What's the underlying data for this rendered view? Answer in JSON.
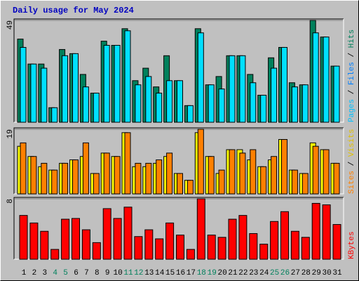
{
  "chart_data": [
    {
      "type": "bar",
      "title": "Daily usage for May 2024",
      "y_label_parts": [
        {
          "text": "Pages",
          "color": "#00c0ff"
        },
        {
          "text": " / ",
          "color": "#000000"
        },
        {
          "text": "Files",
          "color": "#0080ff"
        },
        {
          "text": " / ",
          "color": "#000000"
        },
        {
          "text": "Hits",
          "color": "#00805c"
        }
      ],
      "ylim": [
        0,
        49
      ],
      "yticks": [
        49
      ],
      "series": [
        {
          "name": "Hits",
          "color": "#00805c",
          "values": [
            40,
            28,
            28,
            7,
            35,
            33,
            23,
            14,
            39,
            37,
            45,
            20,
            26,
            17,
            32,
            20,
            8,
            45,
            18,
            22,
            32,
            32,
            23,
            13,
            31,
            36,
            19,
            18,
            49,
            41,
            27
          ]
        },
        {
          "name": "Files",
          "color": "#00e0ff",
          "values": [
            36,
            28,
            26,
            7,
            32,
            33,
            17,
            14,
            37,
            37,
            44,
            18,
            22,
            14,
            20,
            20,
            8,
            43,
            18,
            16,
            32,
            32,
            19,
            13,
            26,
            36,
            17,
            18,
            43,
            41,
            27
          ]
        }
      ]
    },
    {
      "type": "bar",
      "y_label_parts": [
        {
          "text": "Sites",
          "color": "#ff8000"
        },
        {
          "text": " / ",
          "color": "#000000"
        },
        {
          "text": "Visits",
          "color": "#e0c000"
        }
      ],
      "ylim": [
        0,
        19
      ],
      "yticks": [
        19
      ],
      "series": [
        {
          "name": "Visits",
          "color": "#ffff00",
          "values": [
            14,
            11,
            8,
            7,
            9,
            10,
            11,
            6,
            12,
            11,
            18,
            8,
            8,
            9,
            11,
            6,
            4,
            18,
            11,
            6,
            13,
            13,
            10,
            8,
            10,
            16,
            7,
            6,
            15,
            13,
            9
          ]
        },
        {
          "name": "Sites",
          "color": "#ff8000",
          "values": [
            15,
            11,
            9,
            7,
            9,
            10,
            15,
            6,
            12,
            11,
            18,
            9,
            9,
            10,
            12,
            6,
            4,
            19,
            11,
            7,
            13,
            12,
            13,
            8,
            11,
            16,
            7,
            6,
            14,
            13,
            9
          ]
        }
      ]
    },
    {
      "type": "bar",
      "y_label_parts": [
        {
          "text": "KBytes",
          "color": "#ff0000"
        }
      ],
      "ylim": [
        0,
        8
      ],
      "yticks": [
        8
      ],
      "categories": [
        "1",
        "2",
        "3",
        "4",
        "5",
        "6",
        "7",
        "8",
        "9",
        "10",
        "11",
        "12",
        "13",
        "14",
        "15",
        "16",
        "17",
        "18",
        "19",
        "20",
        "21",
        "22",
        "23",
        "24",
        "25",
        "26",
        "27",
        "28",
        "29",
        "30",
        "31"
      ],
      "category_colors": [
        "#000000",
        "#000000",
        "#000000",
        "#00805c",
        "#00805c",
        "#000000",
        "#000000",
        "#000000",
        "#000000",
        "#000000",
        "#00805c",
        "#00805c",
        "#000000",
        "#000000",
        "#000000",
        "#000000",
        "#000000",
        "#00805c",
        "#00805c",
        "#000000",
        "#000000",
        "#000000",
        "#000000",
        "#000000",
        "#00805c",
        "#00805c",
        "#000000",
        "#000000",
        "#000000",
        "#000000",
        "#000000"
      ],
      "series": [
        {
          "name": "KBytes",
          "color": "#ff0000",
          "values": [
            5.8,
            4.8,
            3.7,
            1.3,
            5.3,
            5.4,
            3.9,
            2.2,
            6.7,
            5.4,
            6.9,
            3.0,
            3.9,
            2.7,
            4.8,
            3.2,
            1.3,
            8,
            3.2,
            2.9,
            5.3,
            5.8,
            3.4,
            2.0,
            5.0,
            6.3,
            3.7,
            2.9,
            7.4,
            7.2,
            4.6
          ]
        }
      ]
    }
  ]
}
